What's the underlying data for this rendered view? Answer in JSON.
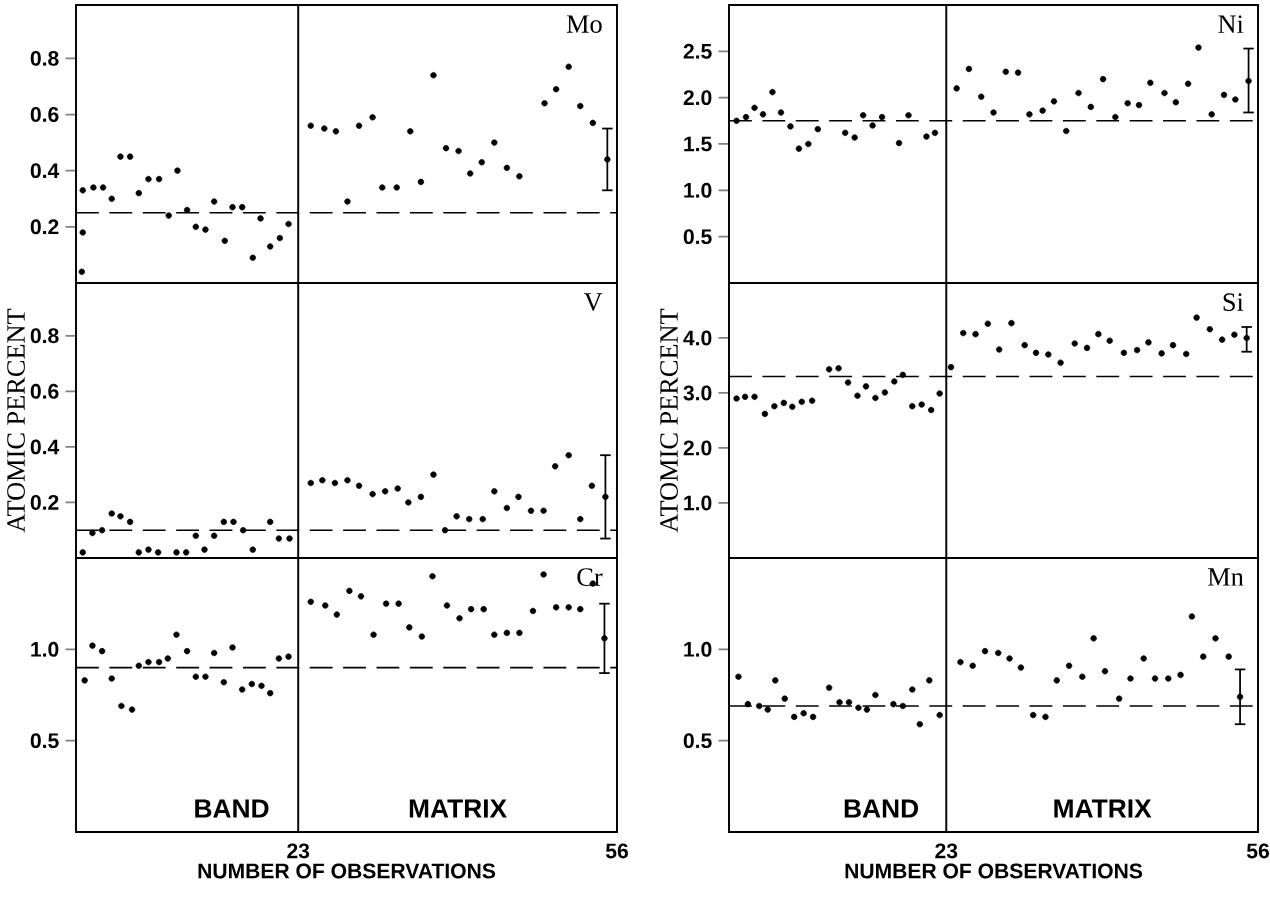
{
  "chart_data": [
    {
      "type": "scatter",
      "title": "Mo",
      "xlim": [
        0,
        56
      ],
      "ylim": [
        0,
        0.99
      ],
      "tick_labels": "y",
      "yticks": [
        0.2,
        0.4,
        0.6,
        0.8
      ],
      "ref_lines": [
        {
          "axis": "x",
          "value": 23,
          "line_style": "solid"
        },
        {
          "axis": "y",
          "value": 0.25,
          "line_style": "dashed"
        }
      ],
      "series": [
        {
          "color": "#000000",
          "x": [
            0.7,
            0.7,
            0.6,
            1.8,
            2.8,
            3.7,
            4.6,
            5.6,
            6.5,
            7.5,
            8.6,
            9.6,
            10.5,
            11.5,
            12.4,
            13.4,
            14.3,
            15.4,
            16.2,
            17.2,
            18.3,
            19.1,
            20.1,
            21.1,
            22.0,
            24.3,
            25.7,
            26.9,
            28.1,
            29.3,
            30.7,
            31.7,
            33.2,
            34.6,
            35.7,
            37.0,
            38.3,
            39.6,
            40.8,
            42.0,
            43.3,
            44.6,
            45.9,
            48.5,
            49.7,
            51.0,
            52.2,
            53.5
          ],
          "values": [
            0.33,
            0.18,
            0.04,
            0.34,
            0.34,
            0.3,
            0.45,
            0.45,
            0.32,
            0.37,
            0.37,
            0.24,
            0.4,
            0.26,
            0.2,
            0.19,
            0.29,
            0.15,
            0.27,
            0.27,
            0.09,
            0.23,
            0.13,
            0.16,
            0.21,
            0.56,
            0.55,
            0.54,
            0.29,
            0.56,
            0.59,
            0.34,
            0.34,
            0.54,
            0.36,
            0.74,
            0.48,
            0.47,
            0.39,
            0.43,
            0.5,
            0.41,
            0.38,
            0.64,
            0.69,
            0.77,
            0.63,
            0.57
          ]
        },
        {
          "color": "#000000",
          "x": [
            55.0
          ],
          "values": [
            0.44
          ],
          "errors": [
            [
              0.33,
              0.55
            ]
          ]
        }
      ]
    },
    {
      "type": "scatter",
      "title": "Ni",
      "xlim": [
        0,
        56
      ],
      "ylim": [
        0,
        3
      ],
      "tick_labels": "y",
      "yticks": [
        0.5,
        {
          "value": 1,
          "label": "1.0"
        },
        1.5,
        {
          "value": 2,
          "label": "2.0"
        },
        2.5
      ],
      "ref_lines": [
        {
          "axis": "x",
          "value": 23,
          "line_style": "solid"
        },
        {
          "axis": "y",
          "value": 1.75,
          "line_style": "dashed"
        }
      ],
      "series": [
        {
          "color": "#000000",
          "x": [
            0.8,
            1.8,
            2.7,
            3.6,
            4.6,
            5.5,
            6.5,
            7.4,
            8.4,
            9.4,
            12.3,
            13.3,
            14.2,
            15.2,
            16.2,
            18.0,
            19.0,
            20.9,
            21.8,
            24.1,
            25.4,
            26.7,
            28.0,
            29.3,
            30.6,
            31.8,
            33.2,
            34.4,
            35.7,
            37.0,
            38.3,
            39.6,
            40.9,
            42.2,
            43.4,
            44.6,
            46.1,
            47.3,
            48.6,
            49.7,
            51.1,
            52.4,
            53.6
          ],
          "values": [
            1.75,
            1.79,
            1.89,
            1.82,
            2.06,
            1.84,
            1.69,
            1.45,
            1.5,
            1.66,
            1.62,
            1.57,
            1.81,
            1.7,
            1.79,
            1.51,
            1.81,
            1.58,
            1.62,
            2.1,
            2.31,
            2.01,
            1.84,
            2.28,
            2.27,
            1.82,
            1.86,
            1.96,
            1.64,
            2.05,
            1.9,
            2.2,
            1.79,
            1.94,
            1.92,
            2.16,
            2.05,
            1.95,
            2.15,
            2.54,
            1.82,
            2.03,
            1.98
          ]
        },
        {
          "color": "#000000",
          "x": [
            55.0
          ],
          "values": [
            2.18
          ],
          "errors": [
            [
              1.84,
              2.53
            ]
          ]
        }
      ]
    },
    {
      "type": "scatter",
      "title": "V",
      "ylabel": "ATOMIC PERCENT",
      "xlim": [
        0,
        56
      ],
      "ylim": [
        0,
        0.99
      ],
      "tick_labels": "y",
      "yticks": [
        0.2,
        0.4,
        0.6,
        0.8
      ],
      "ref_lines": [
        {
          "axis": "x",
          "value": 23,
          "line_style": "solid"
        },
        {
          "axis": "y",
          "value": 0.1,
          "line_style": "dashed"
        }
      ],
      "series": [
        {
          "color": "#000000",
          "x": [
            0.7,
            1.7,
            2.7,
            3.7,
            4.6,
            5.6,
            6.5,
            7.5,
            8.5,
            10.4,
            11.4,
            12.4,
            13.3,
            14.3,
            15.3,
            16.3,
            17.3,
            18.3,
            20.1,
            21.0,
            22.1,
            24.3,
            25.5,
            26.8,
            28.1,
            29.3,
            30.7,
            32.0,
            33.3,
            34.4,
            35.7,
            37.0,
            38.2,
            39.4,
            40.7,
            42.1,
            43.3,
            44.6,
            45.8,
            47.1,
            48.4,
            49.6,
            51.0,
            52.2,
            53.4
          ],
          "values": [
            0.02,
            0.09,
            0.1,
            0.16,
            0.15,
            0.13,
            0.02,
            0.03,
            0.02,
            0.02,
            0.02,
            0.08,
            0.03,
            0.08,
            0.13,
            0.13,
            0.1,
            0.03,
            0.13,
            0.07,
            0.07,
            0.27,
            0.28,
            0.27,
            0.28,
            0.26,
            0.23,
            0.24,
            0.25,
            0.2,
            0.22,
            0.3,
            0.1,
            0.15,
            0.14,
            0.14,
            0.24,
            0.18,
            0.22,
            0.17,
            0.17,
            0.33,
            0.37,
            0.14,
            0.26
          ]
        },
        {
          "color": "#000000",
          "x": [
            54.8
          ],
          "values": [
            0.22
          ],
          "errors": [
            [
              0.07,
              0.37
            ]
          ]
        }
      ]
    },
    {
      "type": "scatter",
      "title": "Si",
      "ylabel": "ATOMIC PERCENT",
      "xlim": [
        0,
        56
      ],
      "ylim": [
        0,
        5
      ],
      "tick_labels": "y",
      "yticks": [
        {
          "value": 1,
          "label": "1.0"
        },
        {
          "value": 2,
          "label": "2.0"
        },
        {
          "value": 3,
          "label": "3.0"
        },
        {
          "value": 4,
          "label": "4.0"
        }
      ],
      "ref_lines": [
        {
          "axis": "x",
          "value": 23,
          "line_style": "solid"
        },
        {
          "axis": "y",
          "value": 3.3,
          "line_style": "dashed"
        }
      ],
      "series": [
        {
          "color": "#000000",
          "x": [
            0.8,
            1.7,
            2.7,
            3.8,
            4.8,
            5.8,
            6.7,
            7.7,
            8.8,
            10.6,
            11.6,
            12.6,
            13.6,
            14.5,
            15.5,
            16.5,
            17.5,
            18.4,
            19.4,
            20.4,
            21.4,
            22.3,
            23.5,
            24.8,
            26.1,
            27.4,
            28.6,
            29.9,
            31.3,
            32.5,
            33.8,
            35.1,
            36.6,
            37.9,
            39.1,
            40.3,
            41.8,
            43.2,
            44.4,
            45.8,
            47.0,
            48.4,
            49.5,
            50.9,
            52.2,
            53.5
          ],
          "values": [
            2.9,
            2.93,
            2.93,
            2.62,
            2.76,
            2.82,
            2.75,
            2.84,
            2.86,
            3.43,
            3.45,
            3.19,
            2.95,
            3.12,
            2.91,
            3.01,
            3.21,
            3.33,
            2.76,
            2.79,
            2.69,
            2.99,
            3.47,
            4.09,
            4.07,
            4.26,
            3.79,
            4.27,
            3.87,
            3.73,
            3.7,
            3.55,
            3.9,
            3.82,
            4.07,
            3.95,
            3.73,
            3.78,
            3.92,
            3.72,
            3.87,
            3.71,
            4.37,
            4.16,
            3.97,
            4.06
          ]
        },
        {
          "color": "#000000",
          "x": [
            54.8
          ],
          "values": [
            4.0
          ],
          "errors": [
            [
              3.75,
              4.2
            ]
          ]
        }
      ]
    },
    {
      "type": "scatter",
      "title": "Cr",
      "xlabel": "NUMBER OF OBSERVATIONS",
      "annotations": [
        "BAND",
        "MATRIX"
      ],
      "xlim": [
        0,
        56
      ],
      "ylim": [
        0,
        1.5
      ],
      "xticks": [
        23,
        56
      ],
      "yticks": [
        0.5,
        {
          "value": 1,
          "label": "1.0"
        }
      ],
      "ref_lines": [
        {
          "axis": "x",
          "value": 23,
          "line_style": "solid"
        },
        {
          "axis": "y",
          "value": 0.9,
          "line_style": "dashed"
        }
      ],
      "series": [
        {
          "color": "#000000",
          "x": [
            0.9,
            1.7,
            2.7,
            3.7,
            4.7,
            5.8,
            6.5,
            7.5,
            8.6,
            9.5,
            10.4,
            11.5,
            12.4,
            13.4,
            14.3,
            15.3,
            16.2,
            17.2,
            18.2,
            19.2,
            20.1,
            21.0,
            22.0,
            24.3,
            25.8,
            27.0,
            28.3,
            29.5,
            30.8,
            32.1,
            33.4,
            34.5,
            35.8,
            36.9,
            38.4,
            39.7,
            40.9,
            42.2,
            43.3,
            44.6,
            45.9,
            47.3,
            48.4,
            49.7,
            51.0,
            52.2,
            53.5
          ],
          "values": [
            0.83,
            1.02,
            0.99,
            0.84,
            0.69,
            0.67,
            0.91,
            0.93,
            0.93,
            0.95,
            1.08,
            0.99,
            0.85,
            0.85,
            0.98,
            0.82,
            1.01,
            0.78,
            0.81,
            0.8,
            0.76,
            0.95,
            0.96,
            1.26,
            1.24,
            1.19,
            1.32,
            1.29,
            1.08,
            1.25,
            1.25,
            1.12,
            1.07,
            1.4,
            1.24,
            1.17,
            1.22,
            1.22,
            1.08,
            1.09,
            1.09,
            1.21,
            1.41,
            1.23,
            1.23,
            1.22,
            1.36
          ]
        },
        {
          "color": "#000000",
          "x": [
            54.7
          ],
          "values": [
            1.06
          ],
          "errors": [
            [
              0.87,
              1.25
            ]
          ]
        }
      ]
    },
    {
      "type": "scatter",
      "title": "Mn",
      "xlabel": "NUMBER OF OBSERVATIONS",
      "annotations": [
        "BAND",
        "MATRIX"
      ],
      "xlim": [
        0,
        56
      ],
      "ylim": [
        0,
        1.5
      ],
      "xticks": [
        23,
        56
      ],
      "yticks": [
        0.5,
        {
          "value": 1,
          "label": "1.0"
        }
      ],
      "ref_lines": [
        {
          "axis": "x",
          "value": 23,
          "line_style": "solid"
        },
        {
          "axis": "y",
          "value": 0.69,
          "line_style": "dashed"
        }
      ],
      "series": [
        {
          "color": "#000000",
          "x": [
            1.0,
            2.0,
            3.2,
            4.1,
            4.9,
            5.9,
            6.9,
            7.9,
            8.9,
            10.6,
            11.7,
            12.7,
            13.7,
            14.6,
            15.5,
            17.4,
            18.4,
            19.4,
            20.2,
            21.2,
            22.3,
            24.5,
            25.8,
            27.1,
            28.5,
            29.7,
            30.9,
            32.2,
            33.5,
            34.7,
            36.0,
            37.4,
            38.6,
            39.8,
            41.3,
            42.5,
            43.9,
            45.1,
            46.5,
            47.8,
            49.0,
            50.2,
            51.5,
            52.9
          ],
          "values": [
            0.85,
            0.7,
            0.69,
            0.67,
            0.83,
            0.73,
            0.63,
            0.65,
            0.63,
            0.79,
            0.71,
            0.71,
            0.68,
            0.67,
            0.75,
            0.7,
            0.69,
            0.78,
            0.59,
            0.83,
            0.64,
            0.93,
            0.91,
            0.99,
            0.98,
            0.95,
            0.9,
            0.64,
            0.63,
            0.83,
            0.91,
            0.85,
            1.06,
            0.88,
            0.73,
            0.84,
            0.95,
            0.84,
            0.84,
            0.86,
            1.18,
            0.96,
            1.06,
            0.96
          ]
        },
        {
          "color": "#000000",
          "x": [
            54.1
          ],
          "values": [
            0.74
          ],
          "errors": [
            [
              0.59,
              0.89
            ]
          ]
        }
      ]
    }
  ]
}
